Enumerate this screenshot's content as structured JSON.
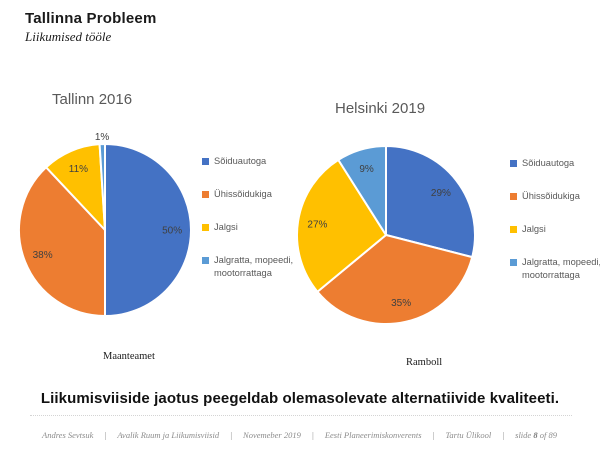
{
  "slide": {
    "title": "Tallinna Probleem",
    "subtitle": "Liikumised tööle",
    "statement": "Liikumisviiside jaotus peegeldab olemasolevate alternatiivide kvaliteeti.",
    "footer": {
      "separator": "|",
      "items": [
        "Andres Sevtsuk",
        "Avalik Ruum ja Liikumisviisid",
        "Novemeber 2019",
        "Eesti Planeerimiskonverents",
        "Tartu Ülikool"
      ],
      "page_indicator": {
        "text_before": "slide ",
        "bold_number": "8",
        "text_after": " of 89"
      }
    }
  },
  "colors": {
    "car_blue": "#4472C4",
    "transit_orange": "#ED7D31",
    "walk_yellow": "#FFC000",
    "bike_lightblue": "#5B9BD5",
    "chart_title_gray": "#595959",
    "label_gray": "#404040",
    "footer_gray": "#8c8c8c"
  },
  "chart_data": [
    {
      "type": "pie",
      "title": "Tallinn 2016",
      "source": "Maanteamet",
      "categories": [
        "Sõiduautoga",
        "Ühissõidukiga",
        "Jalgsi",
        "Jalgratta, mopeedi, mootorrattaga"
      ],
      "values": [
        50,
        38,
        11,
        1
      ],
      "labels": [
        "50%",
        "38%",
        "11%",
        "1%"
      ],
      "colors": [
        "#4472C4",
        "#ED7D31",
        "#FFC000",
        "#5B9BD5"
      ],
      "unit": "%",
      "start_angle": "top",
      "direction": "clockwise",
      "legend_position": "right",
      "slice_border_color": "#ffffff"
    },
    {
      "type": "pie",
      "title": "Helsinki 2019",
      "source": "Ramboll",
      "categories": [
        "Sõiduautoga",
        "Ühissõidukiga",
        "Jalgsi",
        "Jalgratta, mopeedi, mootorrattaga"
      ],
      "values": [
        29,
        35,
        27,
        9
      ],
      "labels": [
        "29%",
        "35%",
        "27%",
        "9%"
      ],
      "colors": [
        "#4472C4",
        "#ED7D31",
        "#FFC000",
        "#5B9BD5"
      ],
      "unit": "%",
      "start_angle": "top",
      "direction": "clockwise",
      "legend_position": "right",
      "slice_border_color": "#ffffff"
    }
  ]
}
